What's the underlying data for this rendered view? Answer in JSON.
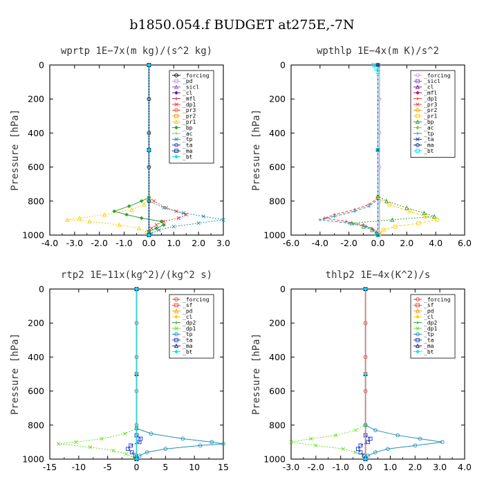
{
  "figure": {
    "title": "b1850.054.f  BUDGET at275E,-7N"
  },
  "chart_data": [
    {
      "type": "line",
      "title": "wprtp  1E−7x(m kg)/(s^2 kg)",
      "ylabel": "Pressure [hPa]",
      "xlim": [
        -4,
        3
      ],
      "ylim": [
        1000,
        0
      ],
      "xticks": [
        "-4.0",
        "-3.0",
        "-2.0",
        "-1.0",
        "0.0",
        "1.0",
        "2.0",
        "3.0"
      ],
      "xtick_values": [
        -4,
        -3,
        -2,
        -1,
        0,
        1,
        2,
        3
      ],
      "yticks": [
        "0",
        "200",
        "400",
        "600",
        "800",
        "1000"
      ],
      "ytick_values": [
        0,
        200,
        400,
        600,
        800,
        1000
      ],
      "legend_position": "top-right",
      "series": [
        {
          "name": "_forcing",
          "color": "#000000",
          "y": [
            0,
            200,
            400,
            600,
            800,
            1000
          ],
          "x": [
            0,
            0,
            0,
            0,
            0,
            0
          ]
        },
        {
          "name": "_pd",
          "color": "#b7a3e0",
          "y": [
            0,
            500,
            1000
          ],
          "x": [
            0,
            0,
            0
          ]
        },
        {
          "name": "_sicl",
          "color": "#8a4fc4",
          "y": [
            0,
            500,
            1000
          ],
          "x": [
            0,
            0,
            0
          ]
        },
        {
          "name": "_cl",
          "color": "#6a1b9a",
          "y": [
            0,
            500,
            1000
          ],
          "x": [
            0,
            0,
            0
          ]
        },
        {
          "name": "_mfl",
          "color": "#c2185b",
          "y": [
            0,
            500,
            1000
          ],
          "x": [
            0,
            0,
            0
          ]
        },
        {
          "name": "_dp1",
          "color": "#e53935",
          "y": [
            0,
            780,
            800,
            840,
            860,
            880,
            900,
            920,
            940,
            960,
            980,
            1000
          ],
          "x": [
            0,
            0,
            0.2,
            0.7,
            1.1,
            1.5,
            1.2,
            0.6,
            0.3,
            0.1,
            0,
            0
          ]
        },
        {
          "name": "_pr3",
          "color": "#f44336",
          "y": [
            0,
            500,
            1000
          ],
          "x": [
            0,
            0,
            0
          ]
        },
        {
          "name": "_pr2",
          "color": "#ff9800",
          "y": [
            0,
            500,
            1000
          ],
          "x": [
            0,
            0,
            0
          ]
        },
        {
          "name": "_pr1",
          "color": "#ffcc00",
          "y": [
            0,
            780,
            820,
            850,
            880,
            900,
            910,
            920,
            940,
            960,
            980,
            1000
          ],
          "x": [
            0,
            0,
            -0.2,
            -0.7,
            -1.8,
            -2.8,
            -3.3,
            -2.4,
            -1.2,
            -0.4,
            -0.1,
            0
          ]
        },
        {
          "name": "_bp",
          "color": "#2e9e2e",
          "y": [
            0,
            780,
            800,
            830,
            860,
            880,
            900,
            920,
            940,
            960,
            980,
            1000
          ],
          "x": [
            0,
            0,
            -0.3,
            -0.8,
            -1.4,
            -0.9,
            -0.3,
            0.5,
            0.6,
            0.3,
            0,
            0
          ]
        },
        {
          "name": "_ac",
          "color": "#8bc34a",
          "y": [
            0,
            500,
            1000
          ],
          "x": [
            0,
            0,
            0
          ]
        },
        {
          "name": "_tp",
          "color": "#1f8fb5",
          "y": [
            0,
            800,
            840,
            870,
            890,
            910,
            930,
            950,
            970,
            990,
            1000
          ],
          "x": [
            0,
            0,
            0.6,
            1.4,
            2.2,
            3.0,
            2.0,
            1.0,
            0.4,
            0.1,
            0
          ]
        },
        {
          "name": "_ta",
          "color": "#1a33cc",
          "y": [
            0,
            500,
            1000
          ],
          "x": [
            0,
            0,
            0
          ]
        },
        {
          "name": "_ma",
          "color": "#0a2a7a",
          "y": [
            0,
            500,
            1000
          ],
          "x": [
            0,
            0,
            0
          ]
        },
        {
          "name": "_bt",
          "color": "#00e5ee",
          "y": [
            0,
            500,
            1000
          ],
          "x": [
            0,
            0,
            0
          ]
        }
      ]
    },
    {
      "type": "line",
      "title": "wpthlp  1E−4x(m K)/s^2",
      "ylabel": "Pressure [hPa]",
      "xlim": [
        -6,
        6
      ],
      "ylim": [
        1000,
        0
      ],
      "xticks": [
        "-6.0",
        "-4.0",
        "-2.0",
        "0.0",
        "2.0",
        "4.0",
        "6.0"
      ],
      "xtick_values": [
        -6,
        -4,
        -2,
        0,
        2,
        4,
        6
      ],
      "yticks": [
        "0",
        "200",
        "400",
        "600",
        "800",
        "1000"
      ],
      "ytick_values": [
        0,
        200,
        400,
        600,
        800,
        1000
      ],
      "legend_position": "top-right",
      "series": [
        {
          "name": "_forcing",
          "color": "#c9a0dc",
          "y": [
            0,
            200,
            400,
            600,
            800,
            1000
          ],
          "x": [
            0.1,
            0.1,
            0.1,
            0.1,
            0.1,
            0.1
          ]
        },
        {
          "name": "_sicl",
          "color": "#8a4fc4",
          "y": [
            0,
            500,
            1000
          ],
          "x": [
            0,
            0,
            0
          ]
        },
        {
          "name": "_cl",
          "color": "#6a1b9a",
          "y": [
            0,
            500,
            1000
          ],
          "x": [
            0,
            0,
            0
          ]
        },
        {
          "name": "_mfl",
          "color": "#c2185b",
          "y": [
            0,
            500,
            1000
          ],
          "x": [
            0,
            0,
            0
          ]
        },
        {
          "name": "_dp1",
          "color": "#e53935",
          "y": [
            0,
            780,
            820,
            850,
            880,
            900,
            920,
            940,
            960,
            980,
            1000
          ],
          "x": [
            0,
            0,
            -0.6,
            -1.6,
            -3.0,
            -3.7,
            -2.2,
            -1.0,
            -0.4,
            -0.1,
            0
          ]
        },
        {
          "name": "_pr3",
          "color": "#f44336",
          "y": [
            0,
            500,
            1000
          ],
          "x": [
            0,
            0,
            0
          ]
        },
        {
          "name": "_pr2",
          "color": "#ff9800",
          "y": [
            0,
            500,
            1000
          ],
          "x": [
            0,
            0,
            0
          ]
        },
        {
          "name": "_pr1",
          "color": "#ffcc00",
          "y": [
            0,
            780,
            820,
            860,
            890,
            910,
            930,
            950,
            970,
            990,
            1000
          ],
          "x": [
            0,
            0,
            0.8,
            2.2,
            3.3,
            4.1,
            2.8,
            1.2,
            0.4,
            0.1,
            0
          ]
        },
        {
          "name": "_bp",
          "color": "#2e9e2e",
          "y": [
            0,
            770,
            800,
            840,
            870,
            890,
            910,
            930,
            950,
            970,
            990,
            1000
          ],
          "x": [
            0,
            0,
            0.6,
            2.0,
            3.2,
            3.9,
            1.0,
            -1.8,
            -1.0,
            -0.4,
            -0.1,
            0
          ]
        },
        {
          "name": "_ac",
          "color": "#8bc34a",
          "y": [
            0,
            500,
            1000
          ],
          "x": [
            0,
            0,
            0
          ]
        },
        {
          "name": "_tp",
          "color": "#1f8fb5",
          "y": [
            0,
            790,
            830,
            860,
            890,
            910,
            930,
            950,
            970,
            990,
            1000
          ],
          "x": [
            0,
            0,
            -0.6,
            -1.6,
            -3.0,
            -4.0,
            -2.0,
            -0.8,
            -0.3,
            -0.1,
            0
          ]
        },
        {
          "name": "_ta",
          "color": "#1a33cc",
          "y": [
            0,
            500,
            1000
          ],
          "x": [
            0,
            0,
            0
          ]
        },
        {
          "name": "_ma",
          "color": "#0a2a7a",
          "y": [
            0,
            500,
            1000
          ],
          "x": [
            0,
            0,
            0
          ]
        },
        {
          "name": "_bt",
          "color": "#00e5ee",
          "y": [
            0,
            20,
            40,
            500,
            1000
          ],
          "x": [
            -0.3,
            -0.1,
            0,
            0,
            0
          ]
        }
      ]
    },
    {
      "type": "line",
      "title": "rtp2  1E−11x(kg^2)/(kg^2 s)",
      "ylabel": "Pressure [hPa]",
      "xlim": [
        -15,
        15
      ],
      "ylim": [
        1000,
        0
      ],
      "xticks": [
        "-15",
        "-10",
        "-5",
        "0",
        "5",
        "10",
        "15"
      ],
      "xtick_values": [
        -15,
        -10,
        -5,
        0,
        5,
        10,
        15
      ],
      "yticks": [
        "0",
        "200",
        "400",
        "600",
        "800",
        "1000"
      ],
      "ytick_values": [
        0,
        200,
        400,
        600,
        800,
        1000
      ],
      "legend_position": "top-right",
      "series": [
        {
          "name": "_forcing",
          "color": "#e53935",
          "y": [
            0,
            200,
            400,
            600,
            800,
            1000
          ],
          "x": [
            0,
            0,
            0,
            0,
            0,
            0
          ]
        },
        {
          "name": "_sf",
          "color": "#f44336",
          "y": [
            0,
            500,
            1000
          ],
          "x": [
            0,
            0,
            0
          ]
        },
        {
          "name": "_pd",
          "color": "#ff9800",
          "y": [
            0,
            500,
            1000
          ],
          "x": [
            0,
            0,
            0
          ]
        },
        {
          "name": "_cl",
          "color": "#ffcc00",
          "y": [
            0,
            500,
            1000
          ],
          "x": [
            0,
            0,
            0
          ]
        },
        {
          "name": "_dp2",
          "color": "#2e9e2e",
          "y": [
            0,
            500,
            1000
          ],
          "x": [
            0,
            0,
            0
          ]
        },
        {
          "name": "_dp1",
          "color": "#66dd22",
          "y": [
            0,
            820,
            850,
            880,
            900,
            910,
            930,
            950,
            970,
            990,
            1000
          ],
          "x": [
            0,
            0,
            -2.0,
            -6.0,
            -10.5,
            -13.5,
            -8.0,
            -4.0,
            -1.8,
            -0.5,
            0
          ]
        },
        {
          "name": "_tp",
          "color": "#1f8fb5",
          "y": [
            0,
            820,
            850,
            880,
            900,
            910,
            920,
            940,
            960,
            980,
            1000
          ],
          "x": [
            0,
            0,
            2.5,
            8.0,
            13.0,
            15.0,
            11.0,
            5.0,
            1.8,
            0.5,
            0
          ]
        },
        {
          "name": "_ta",
          "color": "#1a33cc",
          "y": [
            0,
            860,
            880,
            900,
            920,
            940,
            960,
            980,
            1000
          ],
          "x": [
            0,
            0,
            0.7,
            0.5,
            -1.0,
            -1.5,
            -0.8,
            -0.2,
            0
          ]
        },
        {
          "name": "_ma",
          "color": "#0a2a7a",
          "y": [
            0,
            500,
            1000
          ],
          "x": [
            0,
            0,
            0
          ]
        },
        {
          "name": "_bt",
          "color": "#00e5ee",
          "y": [
            0,
            500,
            1000
          ],
          "x": [
            0,
            0,
            0
          ]
        }
      ]
    },
    {
      "type": "line",
      "title": "thlp2  1E−4x(K^2)/s",
      "ylabel": "Pressure [hPa]",
      "xlim": [
        -3,
        4
      ],
      "ylim": [
        1000,
        0
      ],
      "xticks": [
        "-3.0",
        "-2.0",
        "-1.0",
        "0.0",
        "1.0",
        "2.0",
        "3.0",
        "4.0"
      ],
      "xtick_values": [
        -3,
        -2,
        -1,
        0,
        1,
        2,
        3,
        4
      ],
      "yticks": [
        "0",
        "200",
        "400",
        "600",
        "800",
        "1000"
      ],
      "ytick_values": [
        0,
        200,
        400,
        600,
        800,
        1000
      ],
      "legend_position": "top-right",
      "series": [
        {
          "name": "_forcing",
          "color": "#e53935",
          "y": [
            0,
            200,
            400,
            600,
            800,
            1000
          ],
          "x": [
            0,
            0,
            0,
            0,
            0,
            0
          ]
        },
        {
          "name": "_sf",
          "color": "#f44336",
          "y": [
            0,
            500,
            1000
          ],
          "x": [
            0,
            0,
            0
          ]
        },
        {
          "name": "_pd",
          "color": "#ff9800",
          "y": [
            0,
            500,
            1000
          ],
          "x": [
            0,
            0,
            0
          ]
        },
        {
          "name": "_cl",
          "color": "#ffcc00",
          "y": [
            0,
            500,
            1000
          ],
          "x": [
            0,
            0,
            0
          ]
        },
        {
          "name": "_dp2",
          "color": "#2e9e2e",
          "y": [
            0,
            500,
            1000
          ],
          "x": [
            0,
            0,
            0
          ]
        },
        {
          "name": "_dp1",
          "color": "#66dd22",
          "y": [
            0,
            800,
            830,
            860,
            880,
            900,
            920,
            940,
            960,
            980,
            1000
          ],
          "x": [
            0,
            0,
            -0.4,
            -1.2,
            -2.2,
            -3.0,
            -2.0,
            -0.9,
            -0.4,
            -0.1,
            0
          ]
        },
        {
          "name": "_tp",
          "color": "#1f8fb5",
          "y": [
            0,
            800,
            830,
            860,
            880,
            900,
            920,
            940,
            960,
            980,
            1000
          ],
          "x": [
            0,
            0,
            0.4,
            1.3,
            2.2,
            3.1,
            2.0,
            0.9,
            0.4,
            0.1,
            0
          ]
        },
        {
          "name": "_ta",
          "color": "#1a33cc",
          "y": [
            0,
            860,
            880,
            900,
            920,
            940,
            960,
            980,
            1000
          ],
          "x": [
            0,
            0,
            0.2,
            0.1,
            -0.2,
            -0.3,
            -0.2,
            -0.05,
            0
          ]
        },
        {
          "name": "_ma",
          "color": "#0a2a7a",
          "y": [
            0,
            500,
            1000
          ],
          "x": [
            0,
            0,
            0
          ]
        },
        {
          "name": "_bt",
          "color": "#00e5ee",
          "y": [
            0,
            500,
            1000
          ],
          "x": [
            0,
            0,
            0
          ]
        }
      ]
    }
  ]
}
